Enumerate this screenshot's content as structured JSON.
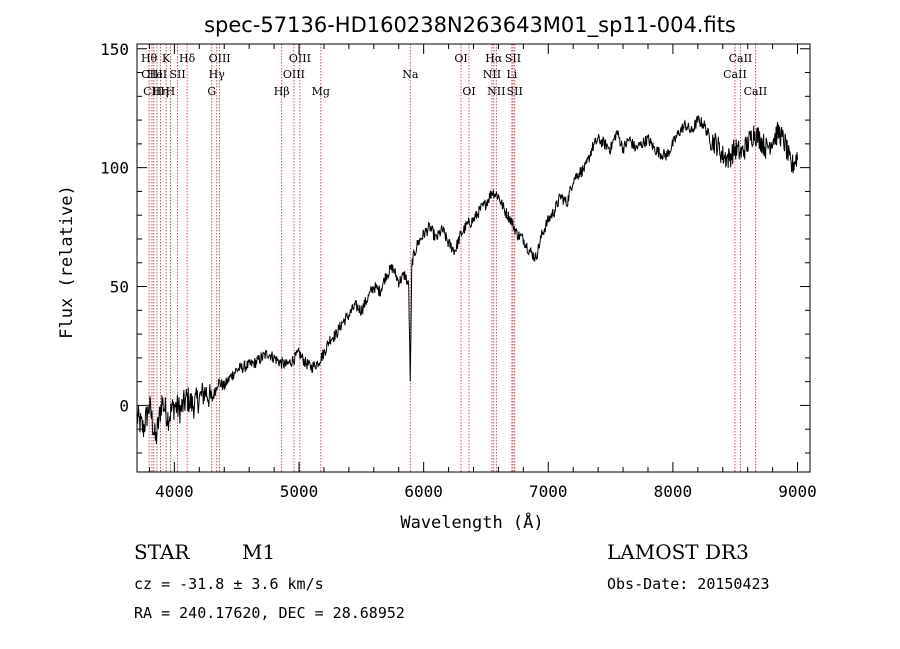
{
  "chart_data": {
    "type": "line",
    "title": "spec-57136-HD160238N263643M01_sp11-004.fits",
    "xlabel": "Wavelength (Å)",
    "ylabel": "Flux (relative)",
    "xlim": [
      3700,
      9100
    ],
    "ylim": [
      -28,
      152
    ],
    "xticks": [
      4000,
      5000,
      6000,
      7000,
      8000,
      9000
    ],
    "xtick_labels": [
      "4000",
      "5000",
      "6000",
      "7000",
      "8000",
      "9000"
    ],
    "yticks": [
      0,
      50,
      100,
      150
    ],
    "ytick_labels": [
      "0",
      "50",
      "100",
      "150"
    ],
    "series": [
      {
        "name": "flux",
        "x": [
          3700,
          3750,
          3800,
          3850,
          3900,
          3950,
          4000,
          4050,
          4100,
          4150,
          4200,
          4250,
          4300,
          4350,
          4400,
          4450,
          4500,
          4550,
          4600,
          4650,
          4700,
          4750,
          4800,
          4850,
          4900,
          4950,
          5000,
          5050,
          5100,
          5150,
          5200,
          5250,
          5300,
          5350,
          5400,
          5450,
          5500,
          5550,
          5600,
          5650,
          5700,
          5750,
          5800,
          5850,
          5880,
          5893,
          5905,
          5950,
          6000,
          6050,
          6100,
          6150,
          6200,
          6250,
          6300,
          6350,
          6400,
          6450,
          6500,
          6550,
          6600,
          6650,
          6700,
          6750,
          6800,
          6850,
          6900,
          6950,
          7000,
          7050,
          7100,
          7150,
          7200,
          7250,
          7300,
          7350,
          7400,
          7450,
          7500,
          7550,
          7600,
          7650,
          7700,
          7750,
          7800,
          7850,
          7900,
          7950,
          8000,
          8050,
          8100,
          8150,
          8200,
          8250,
          8300,
          8350,
          8400,
          8450,
          8500,
          8550,
          8600,
          8650,
          8700,
          8750,
          8800,
          8850,
          8900,
          8950,
          9000
        ],
        "y": [
          -5,
          -10,
          0,
          -15,
          2,
          -5,
          0,
          -2,
          3,
          0,
          3,
          6,
          2,
          10,
          8,
          12,
          15,
          16,
          17,
          18,
          20,
          22,
          20,
          18,
          17,
          19,
          22,
          18,
          16,
          18,
          22,
          28,
          30,
          35,
          38,
          42,
          40,
          45,
          50,
          48,
          55,
          58,
          52,
          55,
          50,
          8,
          60,
          68,
          72,
          75,
          70,
          74,
          68,
          65,
          72,
          76,
          78,
          82,
          85,
          90,
          88,
          82,
          78,
          72,
          70,
          65,
          62,
          72,
          78,
          82,
          88,
          85,
          95,
          98,
          100,
          108,
          112,
          110,
          108,
          115,
          108,
          112,
          108,
          110,
          112,
          108,
          106,
          105,
          110,
          115,
          118,
          115,
          120,
          118,
          112,
          110,
          105,
          104,
          108,
          106,
          110,
          115,
          112,
          108,
          112,
          115,
          110,
          100,
          105
        ]
      }
    ],
    "spectral_lines": [
      {
        "wl": 3797,
        "label": "Hθ",
        "row": 1
      },
      {
        "wl": 3820,
        "label": "CIII",
        "row": 2
      },
      {
        "wl": 3835,
        "label": "CIII",
        "row": 3
      },
      {
        "wl": 3860,
        "label": "HeI",
        "row": 2
      },
      {
        "wl": 3889,
        "label": "Hη",
        "row": 3
      },
      {
        "wl": 3934,
        "label": "K",
        "row": 1
      },
      {
        "wl": 3968,
        "label": "H",
        "row": 3
      },
      {
        "wl": 4026,
        "label": "SII",
        "row": 2
      },
      {
        "wl": 4102,
        "label": "Hδ",
        "row": 1
      },
      {
        "wl": 4300,
        "label": "G",
        "row": 3
      },
      {
        "wl": 4340,
        "label": "Hγ",
        "row": 2
      },
      {
        "wl": 4363,
        "label": "OIII",
        "row": 1
      },
      {
        "wl": 4861,
        "label": "Hβ",
        "row": 3
      },
      {
        "wl": 4959,
        "label": "OIII",
        "row": 2
      },
      {
        "wl": 5007,
        "label": "OIII",
        "row": 1
      },
      {
        "wl": 5175,
        "label": "Mg",
        "row": 3
      },
      {
        "wl": 5893,
        "label": "Na",
        "row": 2
      },
      {
        "wl": 6300,
        "label": "OI",
        "row": 1
      },
      {
        "wl": 6364,
        "label": "OI",
        "row": 3
      },
      {
        "wl": 6548,
        "label": "NII",
        "row": 2
      },
      {
        "wl": 6563,
        "label": "Hα",
        "row": 1
      },
      {
        "wl": 6583,
        "label": "NII",
        "row": 3
      },
      {
        "wl": 6708,
        "label": "Li",
        "row": 2
      },
      {
        "wl": 6717,
        "label": "SII",
        "row": 1
      },
      {
        "wl": 6731,
        "label": "SII",
        "row": 3
      },
      {
        "wl": 8498,
        "label": "CaII",
        "row": 2
      },
      {
        "wl": 8542,
        "label": "CaII",
        "row": 1
      },
      {
        "wl": 8662,
        "label": "CaII",
        "row": 3
      }
    ]
  },
  "info": {
    "class": "STAR",
    "subclass": "M1",
    "survey": "LAMOST DR3",
    "cz": "cz = -31.8 ± 3.6 km/s",
    "obs_date": "Obs-Date: 20150423",
    "coords": "RA = 240.17620, DEC =  28.68952"
  },
  "colors": {
    "axis": "#000000",
    "spectrum": "#000000",
    "lines": "#b03030"
  }
}
